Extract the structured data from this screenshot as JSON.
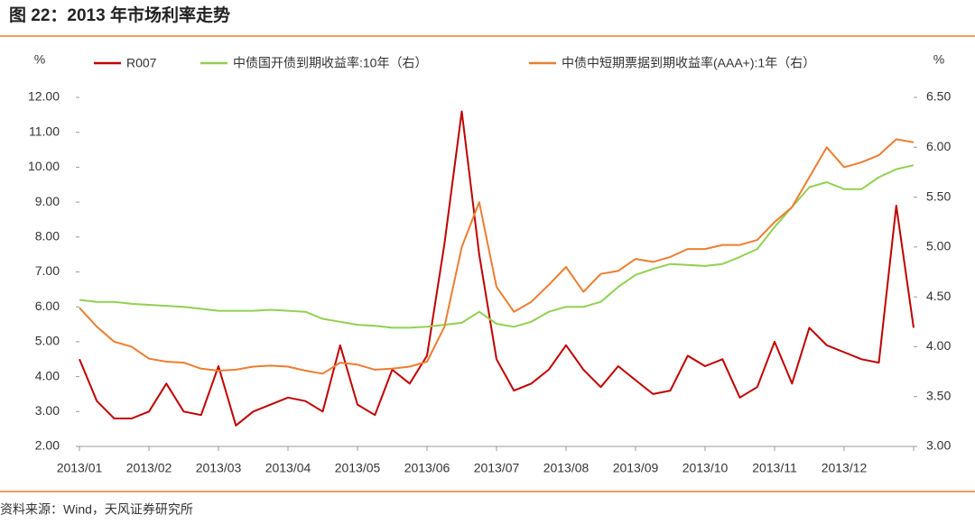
{
  "title": "图 22：2013 年市场利率走势",
  "source": "资料来源：Wind，天风证券研究所",
  "chart_data": {
    "type": "line",
    "ylabel": "%",
    "y2label": "%",
    "categories": [
      "2013/01",
      null,
      null,
      null,
      "2013/02",
      null,
      null,
      null,
      "2013/03",
      null,
      null,
      null,
      "2013/04",
      null,
      null,
      null,
      "2013/05",
      null,
      null,
      null,
      "2013/06",
      null,
      null,
      null,
      "2013/07",
      null,
      null,
      null,
      "2013/08",
      null,
      null,
      null,
      "2013/09",
      null,
      null,
      null,
      "2013/10",
      null,
      null,
      null,
      "2013/11",
      null,
      null,
      null,
      "2013/12",
      null,
      null,
      null,
      null
    ],
    "series": [
      {
        "name": "R007",
        "color": "#c00000",
        "axis": "y",
        "values": [
          4.5,
          3.3,
          2.8,
          2.8,
          3.0,
          3.8,
          3.0,
          2.9,
          4.3,
          2.6,
          3.0,
          3.2,
          3.4,
          3.3,
          3.0,
          4.9,
          3.2,
          2.9,
          4.2,
          3.8,
          4.6,
          7.8,
          11.6,
          7.5,
          4.5,
          3.6,
          3.8,
          4.2,
          4.9,
          4.2,
          3.7,
          4.3,
          3.9,
          3.5,
          3.6,
          4.6,
          4.3,
          4.5,
          3.4,
          3.7,
          5.0,
          3.8,
          5.4,
          4.9,
          4.7,
          4.5,
          4.4,
          8.9,
          5.4
        ]
      },
      {
        "name": "中债国开债到期收益率:10年（右）",
        "color": "#92d050",
        "axis": "y2",
        "values": [
          4.47,
          4.45,
          4.45,
          4.43,
          4.42,
          4.41,
          4.4,
          4.38,
          4.36,
          4.36,
          4.36,
          4.37,
          4.36,
          4.35,
          4.28,
          4.25,
          4.22,
          4.21,
          4.19,
          4.19,
          4.2,
          4.22,
          4.24,
          4.35,
          4.23,
          4.2,
          4.25,
          4.35,
          4.4,
          4.4,
          4.45,
          4.6,
          4.72,
          4.78,
          4.83,
          4.82,
          4.81,
          4.83,
          4.9,
          4.98,
          5.2,
          5.4,
          5.6,
          5.65,
          5.58,
          5.58,
          5.7,
          5.78,
          5.82
        ]
      },
      {
        "name": "中债中短期票据到期收益率(AAA+):1年（右）",
        "color": "#ed7d31",
        "axis": "y2",
        "values": [
          4.39,
          4.2,
          4.05,
          4.0,
          3.88,
          3.85,
          3.84,
          3.78,
          3.76,
          3.77,
          3.8,
          3.81,
          3.8,
          3.76,
          3.73,
          3.84,
          3.82,
          3.77,
          3.78,
          3.8,
          3.85,
          4.2,
          5.0,
          5.45,
          4.6,
          4.35,
          4.45,
          4.62,
          4.8,
          4.55,
          4.73,
          4.76,
          4.88,
          4.85,
          4.9,
          4.98,
          4.98,
          5.02,
          5.02,
          5.07,
          5.25,
          5.4,
          5.7,
          6.0,
          5.8,
          5.85,
          5.92,
          6.08,
          6.05
        ]
      }
    ],
    "ylim": [
      2,
      12
    ],
    "yticks": [
      {
        "value": 2,
        "label": "2.00"
      },
      {
        "value": 3,
        "label": "3.00"
      },
      {
        "value": 4,
        "label": "4.00"
      },
      {
        "value": 5,
        "label": "5.00"
      },
      {
        "value": 6,
        "label": "6.00"
      },
      {
        "value": 7,
        "label": "7.00"
      },
      {
        "value": 8,
        "label": "8.00"
      },
      {
        "value": 9,
        "label": "9.00"
      },
      {
        "value": 10,
        "label": "10.00"
      },
      {
        "value": 11,
        "label": "11.00"
      },
      {
        "value": 12,
        "label": "12.00"
      }
    ],
    "y2lim": [
      3,
      6.5
    ],
    "y2ticks": [
      {
        "value": 3,
        "label": "3.00"
      },
      {
        "value": 3.5,
        "label": "3.50"
      },
      {
        "value": 4,
        "label": "4.00"
      },
      {
        "value": 4.5,
        "label": "4.50"
      },
      {
        "value": 5,
        "label": "5.00"
      },
      {
        "value": 5.5,
        "label": "5.50"
      },
      {
        "value": 6,
        "label": "6.00"
      },
      {
        "value": 6.5,
        "label": "6.50"
      }
    ],
    "legend": "top",
    "grid": false
  }
}
